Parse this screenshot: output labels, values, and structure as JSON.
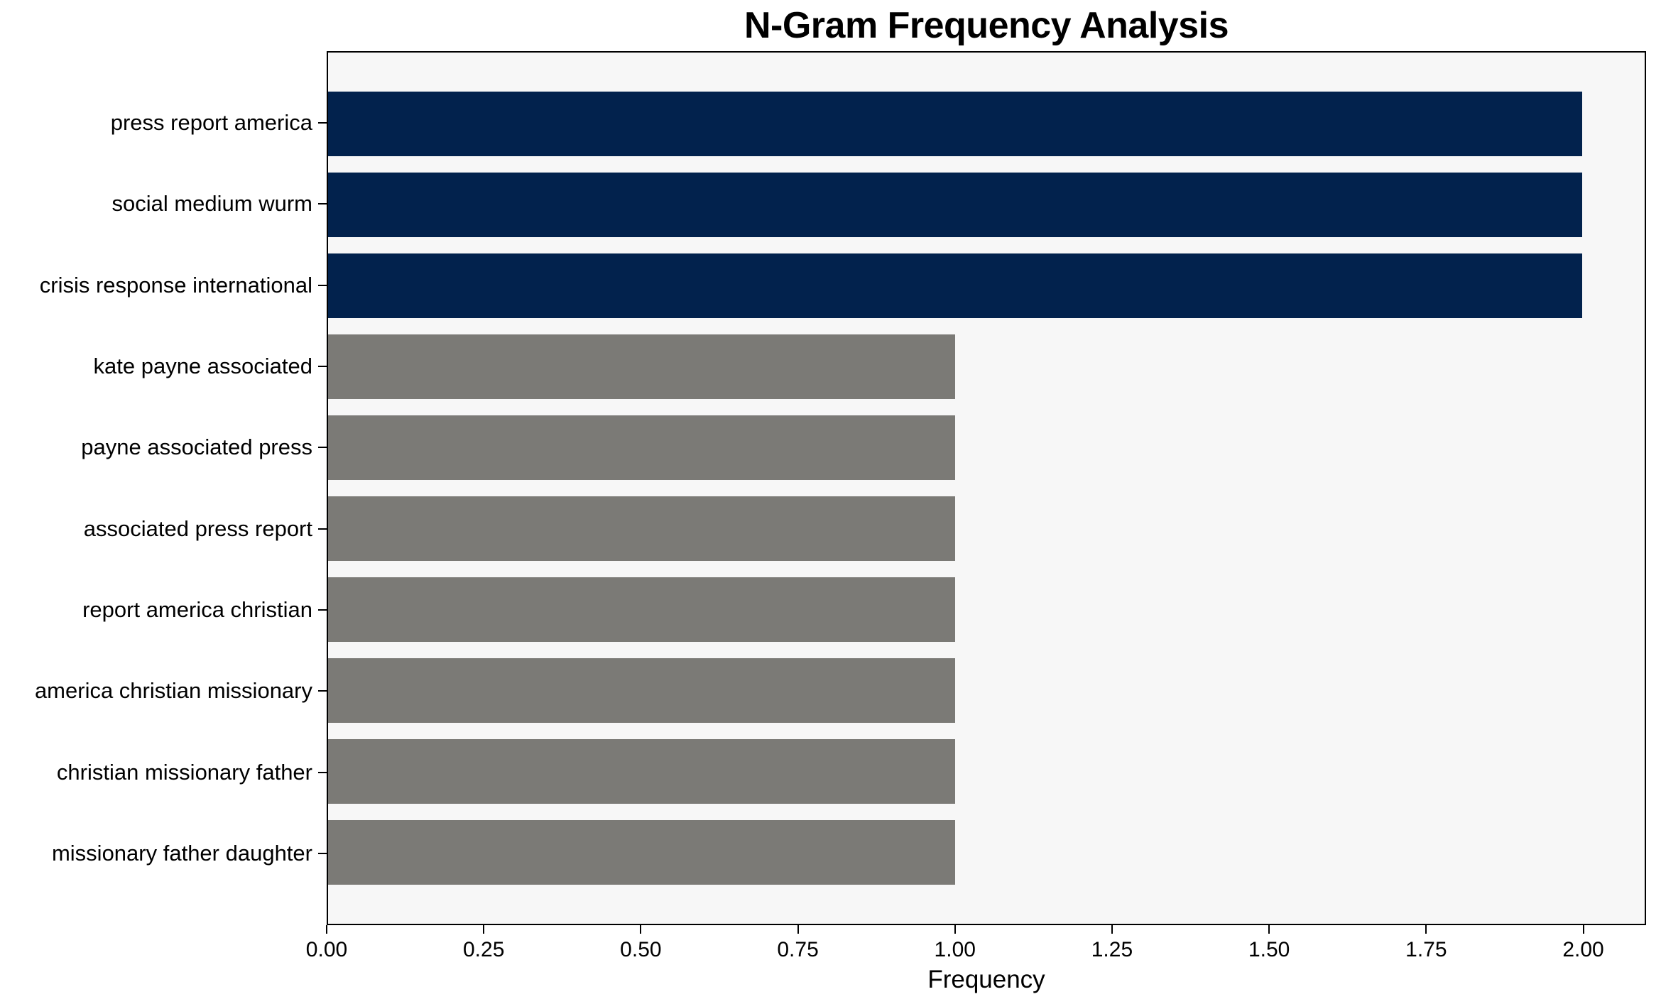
{
  "figure": {
    "background": "#ffffff",
    "plot_background": "#f7f7f7",
    "spine_color": "#000000"
  },
  "chart_data": {
    "type": "bar",
    "orientation": "horizontal",
    "title": "N-Gram Frequency Analysis",
    "xlabel": "Frequency",
    "ylabel": "",
    "categories": [
      "press report america",
      "social medium wurm",
      "crisis response international",
      "kate payne associated",
      "payne associated press",
      "associated press report",
      "report america christian",
      "america christian missionary",
      "christian missionary father",
      "missionary father daughter"
    ],
    "values": [
      2,
      2,
      2,
      1,
      1,
      1,
      1,
      1,
      1,
      1
    ],
    "bar_colors": [
      "#02224d",
      "#02224d",
      "#02224d",
      "#7b7a76",
      "#7b7a76",
      "#7b7a76",
      "#7b7a76",
      "#7b7a76",
      "#7b7a76",
      "#7b7a76"
    ],
    "xlim": [
      0,
      2.1
    ],
    "xtick_values": [
      0,
      0.25,
      0.5,
      0.75,
      1.0,
      1.25,
      1.5,
      1.75,
      2.0
    ],
    "xtick_labels": [
      "0.00",
      "0.25",
      "0.50",
      "0.75",
      "1.00",
      "1.25",
      "1.50",
      "1.75",
      "2.00"
    ],
    "grid": false,
    "legend": "none"
  }
}
